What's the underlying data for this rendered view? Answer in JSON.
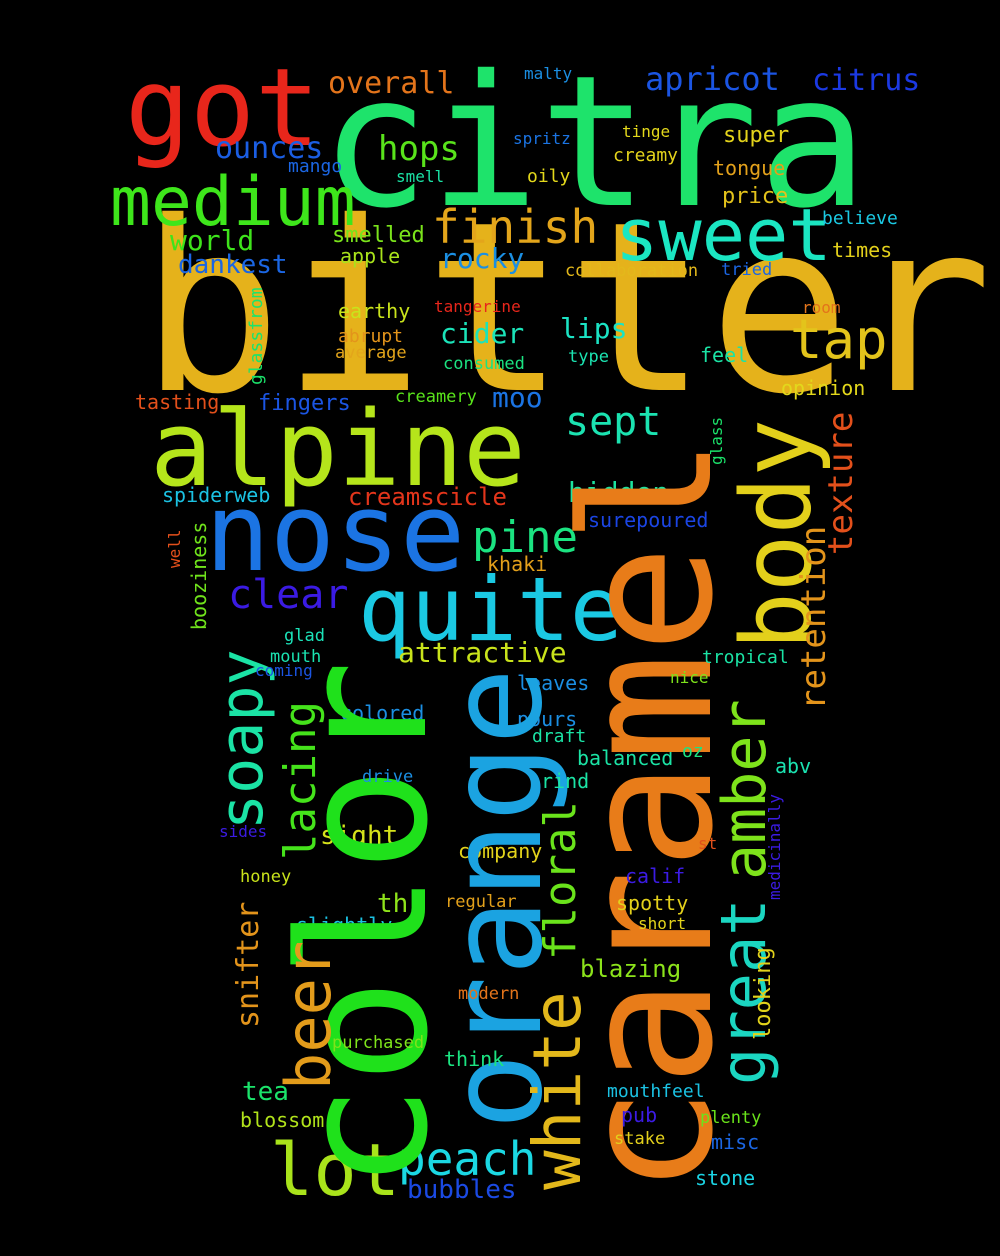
{
  "background": "#000000",
  "words": [
    {
      "text": "bitter",
      "color": "#e5b21b"
    },
    {
      "text": "citra",
      "color": "#1ee36b"
    },
    {
      "text": "caramel",
      "color": "#e87c19"
    },
    {
      "text": "color",
      "color": "#1fe11b"
    },
    {
      "text": "orange",
      "color": "#1ba3e1"
    },
    {
      "text": "nose",
      "color": "#1b74e3"
    },
    {
      "text": "alpine",
      "color": "#b5e51b"
    },
    {
      "text": "got",
      "color": "#e8261b"
    },
    {
      "text": "quite",
      "color": "#1bc9e3"
    },
    {
      "text": "body",
      "color": "#e3d01b"
    },
    {
      "text": "medium",
      "color": "#3ee61b"
    },
    {
      "text": "sweet",
      "color": "#1be6c2"
    },
    {
      "text": "white",
      "color": "#e3b81b"
    },
    {
      "text": "great",
      "color": "#1bd6c1"
    },
    {
      "text": "amber",
      "color": "#7ee31b"
    },
    {
      "text": "lot",
      "color": "#a9e31b"
    },
    {
      "text": "beer",
      "color": "#e39c1b"
    },
    {
      "text": "soapy",
      "color": "#1be3a5"
    },
    {
      "text": "peach",
      "color": "#1bd8e3"
    },
    {
      "text": "lacing",
      "color": "#45e31b"
    },
    {
      "text": "floral",
      "color": "#6ae31b"
    },
    {
      "text": "tap",
      "color": "#e3c41b"
    },
    {
      "text": "finish",
      "color": "#e3a51b"
    },
    {
      "text": "pine",
      "color": "#1be381"
    },
    {
      "text": "retention",
      "color": "#e3941b"
    },
    {
      "text": "texture",
      "color": "#e3501b"
    },
    {
      "text": "clear",
      "color": "#3b1be3"
    },
    {
      "text": "sept",
      "color": "#1be3b1"
    },
    {
      "text": "apricot",
      "color": "#1b55e3"
    },
    {
      "text": "citrus",
      "color": "#1b39e3"
    },
    {
      "text": "overall",
      "color": "#e3741b"
    },
    {
      "text": "hops",
      "color": "#59e31b"
    },
    {
      "text": "ounces",
      "color": "#1b5ee3"
    },
    {
      "text": "snifter",
      "color": "#e3941b"
    },
    {
      "text": "attractive",
      "color": "#c9e31b"
    },
    {
      "text": "hidden",
      "color": "#1be3a0"
    },
    {
      "text": "world",
      "color": "#3ee31b"
    },
    {
      "text": "dankest",
      "color": "#1b66e3"
    },
    {
      "text": "creamscicle",
      "color": "#e3351b"
    },
    {
      "text": "rocky",
      "color": "#1b8fe3"
    },
    {
      "text": "cider",
      "color": "#1be3b9"
    },
    {
      "text": "lips",
      "color": "#1be3c4"
    },
    {
      "text": "moo",
      "color": "#1b74e3"
    },
    {
      "text": "blazing",
      "color": "#8ce31b"
    },
    {
      "text": "bubbles",
      "color": "#1b4ae3"
    },
    {
      "text": "smelled",
      "color": "#7ae31b"
    },
    {
      "text": "super",
      "color": "#e3d31b"
    },
    {
      "text": "tongue",
      "color": "#e3a11b"
    },
    {
      "text": "price",
      "color": "#e3c21b"
    },
    {
      "text": "fingers",
      "color": "#1b55e3"
    },
    {
      "text": "sight",
      "color": "#d6e31b"
    },
    {
      "text": "th",
      "color": "#8fe31b"
    },
    {
      "text": "tea",
      "color": "#1be36b"
    },
    {
      "text": "blossom",
      "color": "#b1e31b"
    },
    {
      "text": "pours",
      "color": "#1b8fe3"
    },
    {
      "text": "surepoured",
      "color": "#1b45e3"
    },
    {
      "text": "spiderweb",
      "color": "#1bc2e3"
    },
    {
      "text": "khaki",
      "color": "#e3a01b"
    },
    {
      "text": "boozienss",
      "color": "#70e31b"
    },
    {
      "text": "opinion",
      "color": "#e3d81b"
    },
    {
      "text": "abv",
      "color": "#1be3b1"
    },
    {
      "text": "stone",
      "color": "#1bd3e3"
    }
  ]
}
